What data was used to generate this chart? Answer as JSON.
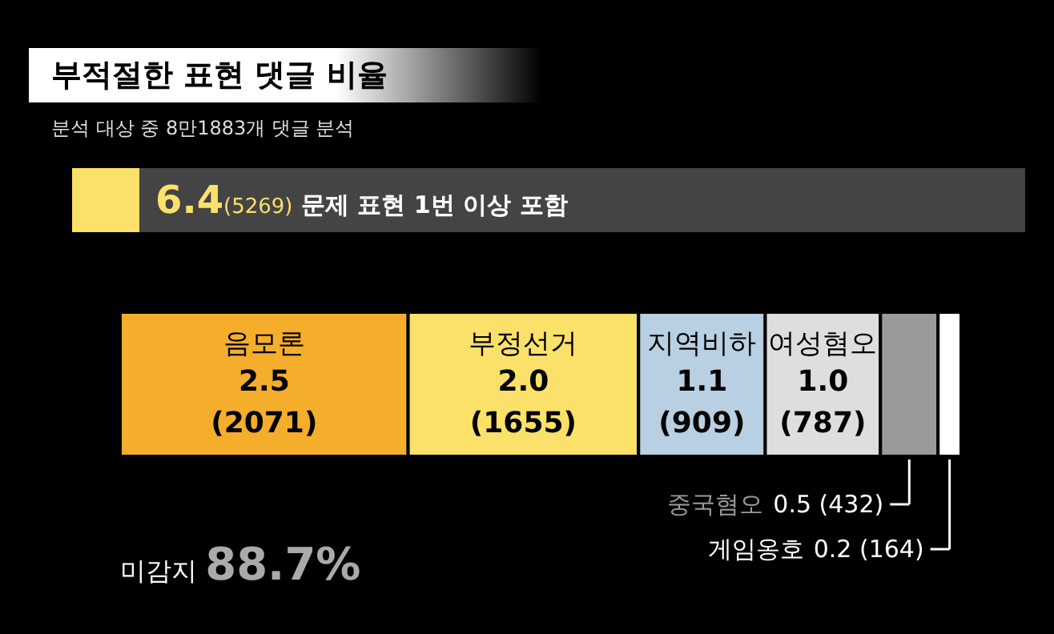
{
  "chart_data": {
    "type": "bar",
    "orientation": "horizontal",
    "stacked": true,
    "title": "부적절한 표현 댓글 비율",
    "subtitle": "분석 대상 중 8만1883개 댓글 분석",
    "annotations": [
      "6.4(5269) 문제 표현 1번 이상 포함",
      "미감지 88.7%"
    ],
    "categories": [
      null
    ],
    "series": [
      {
        "name": "음모론",
        "color": "#f5ad2c",
        "values": [
          2.5
        ],
        "value_labels": [
          "2.5 (2071)"
        ]
      },
      {
        "name": "부정선거",
        "color": "#fbe06a",
        "values": [
          2.0
        ],
        "value_labels": [
          "2.0 (1655)"
        ]
      },
      {
        "name": "지역비하",
        "color": "#b9cfe2",
        "values": [
          1.1
        ],
        "value_labels": [
          "1.1 (909)"
        ]
      },
      {
        "name": "여성혐오",
        "color": "#dedede",
        "values": [
          1.0
        ],
        "value_labels": [
          "1.0 (787)"
        ]
      },
      {
        "name": "중국혐오",
        "color": "#9a9a9a",
        "values": [
          0.5
        ],
        "value_labels": [
          "0.5 (432)"
        ]
      },
      {
        "name": "게임옹호",
        "color": "#ffffff",
        "values": [
          0.2
        ],
        "value_labels": [
          "0.2 (164)"
        ]
      }
    ]
  }
}
